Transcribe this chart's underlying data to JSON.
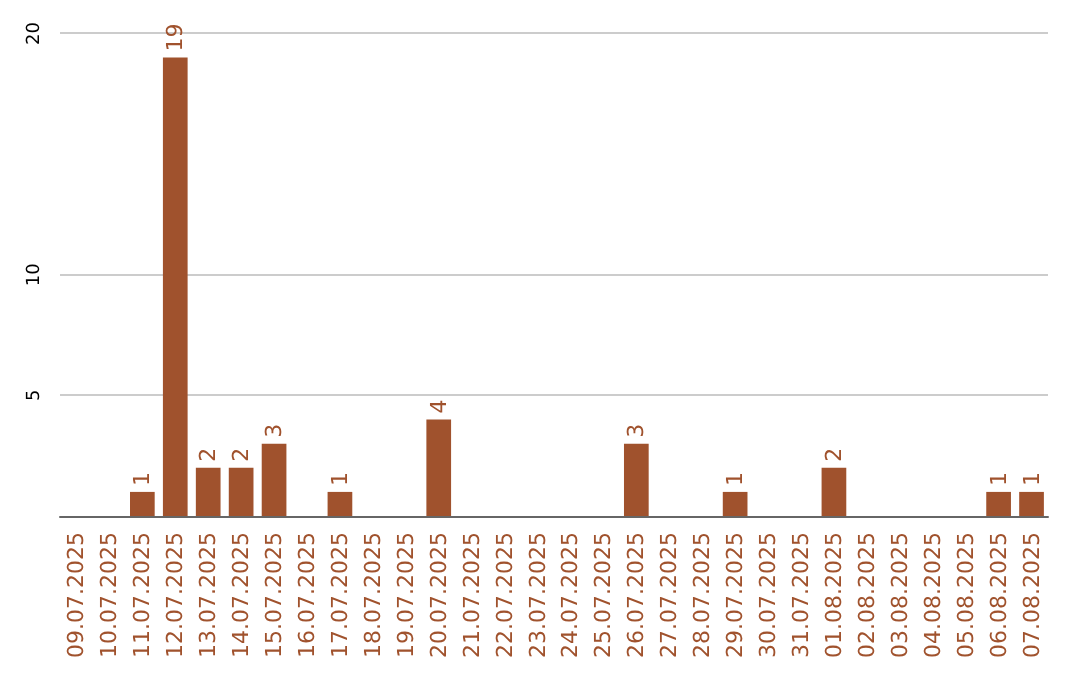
{
  "chart_data": {
    "type": "bar",
    "categories": [
      "09.07.2025",
      "10.07.2025",
      "11.07.2025",
      "12.07.2025",
      "13.07.2025",
      "14.07.2025",
      "15.07.2025",
      "16.07.2025",
      "17.07.2025",
      "18.07.2025",
      "19.07.2025",
      "20.07.2025",
      "21.07.2025",
      "22.07.2025",
      "23.07.2025",
      "24.07.2025",
      "25.07.2025",
      "26.07.2025",
      "27.07.2025",
      "28.07.2025",
      "29.07.2025",
      "30.07.2025",
      "31.07.2025",
      "01.08.2025",
      "02.08.2025",
      "03.08.2025",
      "04.08.2025",
      "05.08.2025",
      "06.08.2025",
      "07.08.2025"
    ],
    "values": [
      0,
      0,
      1,
      19,
      2,
      2,
      3,
      0,
      1,
      0,
      0,
      4,
      0,
      0,
      0,
      0,
      0,
      3,
      0,
      0,
      1,
      0,
      0,
      2,
      0,
      0,
      0,
      0,
      1,
      1
    ],
    "value_labels": [
      null,
      null,
      "1",
      "19",
      "2",
      "2",
      "3",
      null,
      "1",
      null,
      null,
      "4",
      null,
      null,
      null,
      null,
      null,
      "3",
      null,
      null,
      "1",
      null,
      null,
      "2",
      null,
      null,
      null,
      null,
      "1",
      "1"
    ],
    "color": "#a0522d",
    "ylim": [
      0,
      20
    ],
    "yticks": [
      5,
      10,
      20
    ],
    "grid": "y"
  }
}
